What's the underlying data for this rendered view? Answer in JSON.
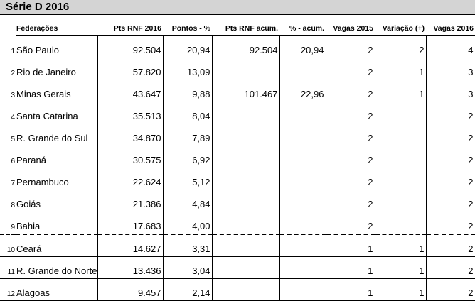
{
  "title": "Série D 2016",
  "columns": [
    "Federações",
    "Pts RNF 2016",
    "Pontos - %",
    "Pts RNF acum.",
    "% - acum.",
    "Vagas 2015",
    "Variação (+)",
    "Vagas 2016"
  ],
  "rows": [
    {
      "n": "1",
      "fed": "São Paulo",
      "pts": "92.504",
      "pct": "20,94",
      "acum": "92.504",
      "pacum": "20,94",
      "v15": "2",
      "var": "2",
      "v16": "4"
    },
    {
      "n": "2",
      "fed": "Rio de Janeiro",
      "pts": "57.820",
      "pct": "13,09",
      "acum": "",
      "pacum": "",
      "v15": "2",
      "var": "1",
      "v16": "3"
    },
    {
      "n": "3",
      "fed": "Minas Gerais",
      "pts": "43.647",
      "pct": "9,88",
      "acum": "101.467",
      "pacum": "22,96",
      "v15": "2",
      "var": "1",
      "v16": "3"
    },
    {
      "n": "4",
      "fed": "Santa Catarina",
      "pts": "35.513",
      "pct": "8,04",
      "acum": "",
      "pacum": "",
      "v15": "2",
      "var": "",
      "v16": "2"
    },
    {
      "n": "5",
      "fed": "R. Grande do Sul",
      "pts": "34.870",
      "pct": "7,89",
      "acum": "",
      "pacum": "",
      "v15": "2",
      "var": "",
      "v16": "2"
    },
    {
      "n": "6",
      "fed": "Paraná",
      "pts": "30.575",
      "pct": "6,92",
      "acum": "",
      "pacum": "",
      "v15": "2",
      "var": "",
      "v16": "2"
    },
    {
      "n": "7",
      "fed": "Pernambuco",
      "pts": "22.624",
      "pct": "5,12",
      "acum": "",
      "pacum": "",
      "v15": "2",
      "var": "",
      "v16": "2"
    },
    {
      "n": "8",
      "fed": "Goiás",
      "pts": "21.386",
      "pct": "4,84",
      "acum": "",
      "pacum": "",
      "v15": "2",
      "var": "",
      "v16": "2"
    },
    {
      "n": "9",
      "fed": "Bahia",
      "pts": "17.683",
      "pct": "4,00",
      "acum": "",
      "pacum": "",
      "v15": "2",
      "var": "",
      "v16": "2",
      "cut": true
    },
    {
      "n": "10",
      "fed": "Ceará",
      "pts": "14.627",
      "pct": "3,31",
      "acum": "",
      "pacum": "",
      "v15": "1",
      "var": "1",
      "v16": "2"
    },
    {
      "n": "11",
      "fed": "R. Grande do Norte",
      "pts": "13.436",
      "pct": "3,04",
      "acum": "",
      "pacum": "",
      "v15": "1",
      "var": "1",
      "v16": "2"
    },
    {
      "n": "12",
      "fed": "Alagoas",
      "pts": "9.457",
      "pct": "2,14",
      "acum": "",
      "pacum": "",
      "v15": "1",
      "var": "1",
      "v16": "2"
    }
  ]
}
